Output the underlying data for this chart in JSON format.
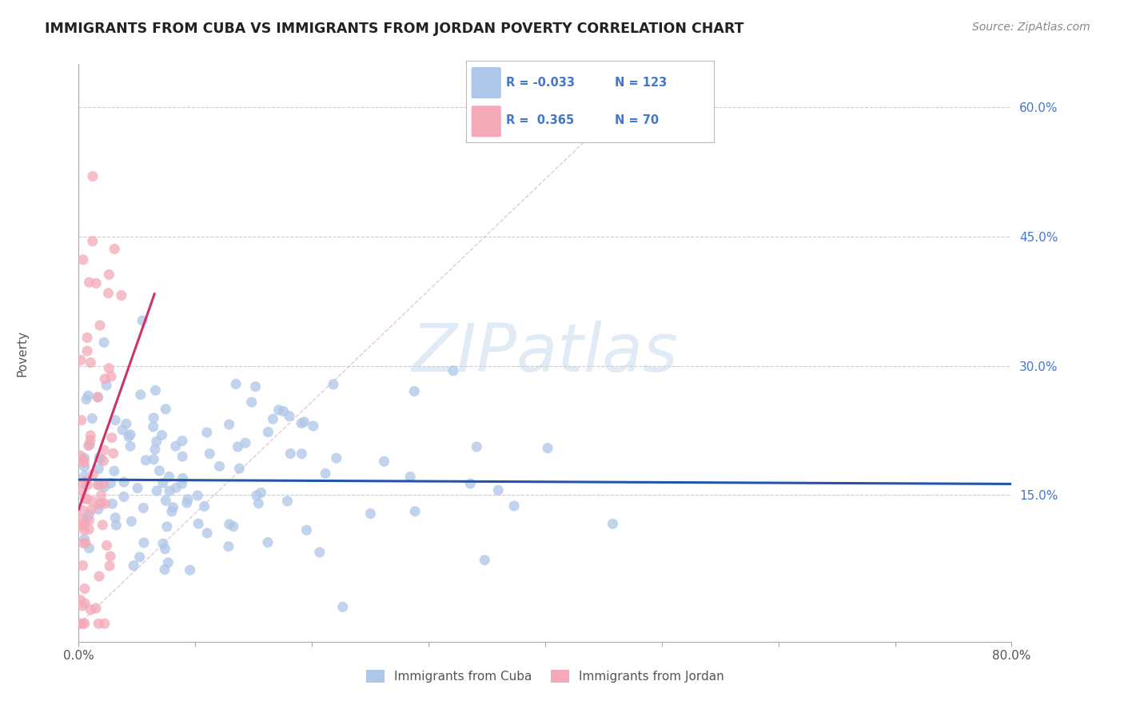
{
  "title": "IMMIGRANTS FROM CUBA VS IMMIGRANTS FROM JORDAN POVERTY CORRELATION CHART",
  "source": "Source: ZipAtlas.com",
  "ylabel": "Poverty",
  "xlim": [
    0.0,
    0.8
  ],
  "ylim": [
    -0.02,
    0.65
  ],
  "yticks": [
    0.15,
    0.3,
    0.45,
    0.6
  ],
  "ytick_labels": [
    "15.0%",
    "30.0%",
    "45.0%",
    "60.0%"
  ],
  "xtick_positions": [
    0.0,
    0.1,
    0.2,
    0.3,
    0.4,
    0.5,
    0.6,
    0.7,
    0.8
  ],
  "xtick_labels": [
    "0.0%",
    "",
    "",
    "",
    "",
    "",
    "",
    "",
    "80.0%"
  ],
  "cuba_color": "#aec6e8",
  "jordan_color": "#f4a9b8",
  "trend_cuba_color": "#2255aa",
  "trend_jordan_color": "#cc3366",
  "R_cuba": -0.033,
  "N_cuba": 123,
  "R_jordan": 0.365,
  "N_jordan": 70,
  "legend_cuba": "Immigrants from Cuba",
  "legend_jordan": "Immigrants from Jordan",
  "watermark": "ZIPatlas",
  "background_color": "#ffffff",
  "ytick_color": "#4477cc",
  "grid_color": "#cccccc"
}
